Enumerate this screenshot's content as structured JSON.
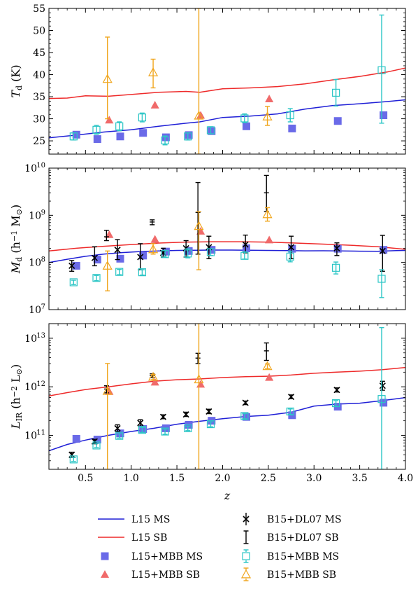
{
  "chart_data": [
    {
      "id": "td",
      "type": "scatter",
      "ylabel": "Td (K)",
      "ylabel_main": "T",
      "ylabel_sub": "d",
      "ylabel_unit": " (K)",
      "xlim": [
        0.1,
        4.0
      ],
      "ylim": [
        22,
        55
      ],
      "yscale": "linear",
      "yticks": [
        25,
        30,
        35,
        40,
        45,
        50,
        55
      ],
      "yticklabels": [
        "25",
        "30",
        "35",
        "40",
        "45",
        "50",
        "55"
      ],
      "series": [
        {
          "name": "L15 MS",
          "kind": "line",
          "x": [
            0.1,
            0.4,
            0.7,
            1.0,
            1.3,
            1.6,
            1.75,
            2.0,
            2.3,
            2.6,
            2.9,
            3.2,
            3.5,
            3.8,
            4.0
          ],
          "y": [
            25.7,
            26.3,
            27.0,
            27.5,
            28.3,
            29.0,
            29.3,
            30.3,
            30.6,
            31.1,
            32.2,
            33.0,
            33.4,
            33.9,
            34.3
          ]
        },
        {
          "name": "L15 SB",
          "kind": "line",
          "x": [
            0.1,
            0.3,
            0.5,
            0.75,
            1.0,
            1.3,
            1.6,
            1.75,
            2.0,
            2.3,
            2.6,
            2.9,
            3.2,
            3.5,
            3.8,
            4.0
          ],
          "y": [
            34.6,
            34.7,
            35.2,
            35.1,
            35.5,
            36.0,
            36.2,
            36.0,
            36.8,
            37.0,
            37.3,
            37.9,
            38.8,
            39.6,
            40.6,
            41.5
          ]
        },
        {
          "name": "L15+MBB MS",
          "kind": "points",
          "x": [
            0.4,
            0.63,
            0.88,
            1.13,
            1.38,
            1.63,
            1.88,
            2.26,
            2.76,
            3.26,
            3.76
          ],
          "y": [
            26.4,
            25.4,
            26.0,
            26.8,
            25.8,
            26.3,
            27.2,
            28.3,
            27.8,
            29.5,
            30.8
          ]
        },
        {
          "name": "L15+MBB SB",
          "kind": "points",
          "x": [
            0.76,
            1.26,
            1.76,
            2.51
          ],
          "y": [
            29.7,
            33.1,
            30.8,
            34.5
          ]
        },
        {
          "name": "B15+MBB MS",
          "kind": "errorbar",
          "x": [
            0.37,
            0.62,
            0.87,
            1.12,
            1.37,
            1.62,
            1.87,
            2.24,
            2.74,
            3.24,
            3.74
          ],
          "y": [
            26.0,
            27.5,
            28.3,
            30.3,
            25.1,
            26.0,
            27.4,
            30.1,
            30.8,
            35.9,
            41.0
          ],
          "yerr_low": [
            0.8,
            1.0,
            1.0,
            1.0,
            1.0,
            0.8,
            0.8,
            1.0,
            1.5,
            3.0,
            12.0
          ],
          "yerr_high": [
            0.8,
            1.0,
            1.0,
            1.0,
            1.0,
            0.8,
            0.8,
            1.0,
            1.5,
            3.0,
            12.5
          ]
        },
        {
          "name": "B15+MBB SB",
          "kind": "errorbar",
          "x": [
            0.74,
            1.24,
            1.74,
            2.49
          ],
          "y": [
            39.0,
            40.5,
            30.7,
            30.5
          ],
          "yerr_low": [
            9.0,
            3.5,
            22.0,
            2.0
          ],
          "yerr_high": [
            9.5,
            3.0,
            24.5,
            2.3
          ]
        }
      ]
    },
    {
      "id": "md",
      "type": "scatter",
      "ylabel": "Md (h−1 M⊙)",
      "ylabel_main": "M",
      "ylabel_sub": "d",
      "ylabel_unit": " (h",
      "ylabel_sup": "−1",
      "ylabel_tail": " M",
      "ylabel_sun": "⊙",
      "ylabel_close": ")",
      "xlim": [
        0.1,
        4.0
      ],
      "ylim": [
        10000000,
        10000000000
      ],
      "yscale": "log",
      "yticks": [
        10000000,
        100000000,
        1000000000,
        10000000000
      ],
      "yticklabels": [
        "10",
        "10",
        "10",
        "10"
      ],
      "ytickexp": [
        "7",
        "8",
        "9",
        "10"
      ],
      "series": [
        {
          "name": "L15 MS",
          "kind": "line",
          "x": [
            0.1,
            0.3,
            0.5,
            0.7,
            0.9,
            1.1,
            1.3,
            1.5,
            1.7,
            1.9,
            2.1,
            2.3,
            2.5,
            2.7,
            2.9,
            3.1,
            3.3,
            3.5,
            3.7,
            3.9,
            4.0
          ],
          "y": [
            100000000,
            117000000,
            135000000,
            150000000,
            162000000,
            170000000,
            175000000,
            180000000,
            182000000,
            183000000,
            183000000,
            181000000,
            180000000,
            178000000,
            176000000,
            177000000,
            175000000,
            173000000,
            172000000,
            178000000,
            180000000
          ]
        },
        {
          "name": "L15 SB",
          "kind": "line",
          "x": [
            0.1,
            0.4,
            0.7,
            1.0,
            1.3,
            1.6,
            1.9,
            2.2,
            2.5,
            2.8,
            3.1,
            3.4,
            3.7,
            4.0
          ],
          "y": [
            175000000,
            200000000,
            220000000,
            240000000,
            258000000,
            270000000,
            275000000,
            275000000,
            270000000,
            258000000,
            245000000,
            232000000,
            215000000,
            190000000
          ]
        },
        {
          "name": "L15+MBB MS",
          "kind": "points",
          "x": [
            0.4,
            0.63,
            0.88,
            1.13,
            1.38,
            1.63,
            1.88,
            2.26,
            2.76,
            3.26,
            3.76
          ],
          "y": [
            85000000,
            115000000,
            120000000,
            140000000,
            170000000,
            175000000,
            185000000,
            200000000,
            195000000,
            195000000,
            185000000
          ]
        },
        {
          "name": "L15+MBB SB",
          "kind": "points",
          "x": [
            0.76,
            1.26,
            1.76,
            2.51
          ],
          "y": [
            390000000,
            310000000,
            460000000,
            300000000
          ]
        },
        {
          "name": "B15+DL07 MS",
          "kind": "errorbar",
          "x": [
            0.35,
            0.6,
            0.85,
            1.1,
            1.35,
            1.6,
            1.85,
            2.25,
            2.75,
            3.25,
            3.75
          ],
          "y": [
            85000000,
            125000000,
            185000000,
            130000000,
            160000000,
            200000000,
            210000000,
            240000000,
            210000000,
            200000000,
            175000000
          ],
          "yerr_low": [
            20000000,
            40000000,
            70000000,
            60000000,
            30000000,
            70000000,
            90000000,
            80000000,
            90000000,
            60000000,
            110000000
          ],
          "yerr_high": [
            25000000,
            90000000,
            120000000,
            120000000,
            40000000,
            90000000,
            150000000,
            140000000,
            150000000,
            60000000,
            200000000
          ]
        },
        {
          "name": "B15+DL07 SB",
          "kind": "errorbar",
          "x": [
            0.73,
            1.23,
            1.73,
            2.48
          ],
          "y": [
            350000000,
            720000000,
            1150000000,
            3000000000
          ],
          "yerr_low": [
            60000000,
            90000000,
            1000000000,
            1800000000
          ],
          "yerr_high": [
            130000000,
            80000000,
            3800000000,
            4000000000
          ]
        },
        {
          "name": "B15+MBB MS",
          "kind": "errorbar",
          "x": [
            0.37,
            0.62,
            0.87,
            1.12,
            1.37,
            1.62,
            1.87,
            2.24,
            2.74,
            3.24,
            3.74
          ],
          "y": [
            38000000,
            47000000,
            63000000,
            62000000,
            150000000,
            155000000,
            165000000,
            138000000,
            133000000,
            77000000,
            45000000
          ],
          "yerr_low": [
            4000000,
            6000000,
            8000000,
            8000000,
            20000000,
            30000000,
            25000000,
            20000000,
            30000000,
            20000000,
            27000000
          ],
          "yerr_high": [
            4000000,
            6000000,
            8000000,
            8000000,
            30000000,
            40000000,
            30000000,
            30000000,
            40000000,
            25000000,
            25000000
          ]
        },
        {
          "name": "B15+MBB SB",
          "kind": "errorbar",
          "x": [
            0.74,
            1.24,
            1.74,
            2.49
          ],
          "y": [
            85000000,
            190000000,
            590000000,
            1050000000
          ],
          "yerr_low": [
            60000000,
            40000000,
            520000000,
            300000000
          ],
          "yerr_high": [
            90000000,
            60000000,
            600000000,
            400000000
          ]
        }
      ]
    },
    {
      "id": "lir",
      "type": "scatter",
      "ylabel": "LIR (h−2 L⊙)",
      "ylabel_main": "L",
      "ylabel_sub": "IR",
      "ylabel_unit": " (h",
      "ylabel_sup": "−2",
      "ylabel_tail": " L",
      "ylabel_sun": "⊙",
      "ylabel_close": ")",
      "xlabel": "z",
      "xlim": [
        0.1,
        4.0
      ],
      "ylim": [
        20000000000,
        20000000000000
      ],
      "yscale": "log",
      "yticks": [
        100000000000,
        1000000000000,
        10000000000000
      ],
      "yticklabels": [
        "10",
        "10",
        "10"
      ],
      "ytickexp": [
        "11",
        "12",
        "13"
      ],
      "xticks": [
        0.5,
        1.0,
        1.5,
        2.0,
        2.5,
        3.0,
        3.5,
        4.0
      ],
      "xticklabels": [
        "0.5",
        "1.0",
        "1.5",
        "2.0",
        "2.5",
        "3.0",
        "3.5",
        "4.0"
      ],
      "series": [
        {
          "name": "L15 MS",
          "kind": "line",
          "x": [
            0.1,
            0.3,
            0.5,
            0.75,
            1.0,
            1.25,
            1.5,
            1.75,
            2.0,
            2.25,
            2.5,
            2.75,
            3.0,
            3.25,
            3.5,
            3.75,
            4.0
          ],
          "y": [
            48000000000,
            65000000000,
            80000000000,
            100000000000,
            120000000000,
            140000000000,
            170000000000,
            195000000000,
            220000000000,
            245000000000,
            260000000000,
            300000000000,
            400000000000,
            440000000000,
            460000000000,
            520000000000,
            600000000000
          ]
        },
        {
          "name": "L15 SB",
          "kind": "line",
          "x": [
            0.1,
            0.3,
            0.5,
            0.75,
            1.0,
            1.25,
            1.5,
            1.75,
            2.0,
            2.25,
            2.5,
            2.75,
            3.0,
            3.25,
            3.5,
            3.75,
            4.0
          ],
          "y": [
            650000000000,
            760000000000,
            880000000000,
            1000000000000,
            1150000000000,
            1300000000000,
            1400000000000,
            1450000000000,
            1550000000000,
            1620000000000,
            1650000000000,
            1750000000000,
            1900000000000,
            2000000000000,
            2100000000000,
            2250000000000,
            2500000000000
          ]
        },
        {
          "name": "L15+MBB MS",
          "kind": "points",
          "x": [
            0.4,
            0.63,
            0.88,
            1.13,
            1.38,
            1.63,
            1.88,
            2.26,
            2.76,
            3.26,
            3.76
          ],
          "y": [
            85000000000,
            82000000000,
            110000000000,
            135000000000,
            140000000000,
            165000000000,
            200000000000,
            240000000000,
            260000000000,
            390000000000,
            470000000000
          ]
        },
        {
          "name": "L15+MBB SB",
          "kind": "points",
          "x": [
            0.76,
            1.26,
            1.76,
            2.51
          ],
          "y": [
            800000000000,
            1250000000000,
            1130000000000,
            1560000000000
          ]
        },
        {
          "name": "B15+DL07 MS",
          "kind": "errorbar",
          "x": [
            0.35,
            0.6,
            0.85,
            1.1,
            1.35,
            1.6,
            1.85,
            2.25,
            2.75,
            3.25,
            3.75
          ],
          "y": [
            40000000000,
            75000000000,
            140000000000,
            180000000000,
            240000000000,
            270000000000,
            310000000000,
            470000000000,
            620000000000,
            860000000000,
            1050000000000
          ],
          "yerr_low": [
            5000000000,
            8000000000,
            20000000000,
            25000000000,
            20000000000,
            25000000000,
            30000000000,
            40000000000,
            50000000000,
            80000000000,
            200000000000
          ],
          "yerr_high": [
            5000000000,
            8000000000,
            25000000000,
            30000000000,
            25000000000,
            30000000000,
            35000000000,
            40000000000,
            60000000000,
            90000000000,
            250000000000
          ]
        },
        {
          "name": "B15+DL07 SB",
          "kind": "errorbar",
          "x": [
            0.73,
            1.23,
            1.73,
            2.48
          ],
          "y": [
            900000000000,
            1700000000000,
            3900000000000,
            5500000000000
          ],
          "yerr_low": [
            150000000000,
            150000000000,
            900000000000,
            2000000000000
          ],
          "yerr_high": [
            150000000000,
            150000000000,
            1000000000000,
            2500000000000
          ]
        },
        {
          "name": "B15+MBB MS",
          "kind": "errorbar",
          "x": [
            0.37,
            0.62,
            0.87,
            1.12,
            1.37,
            1.62,
            1.87,
            2.24,
            2.74,
            3.24,
            3.74
          ],
          "y": [
            32000000000,
            62000000000,
            98000000000,
            130000000000,
            120000000000,
            140000000000,
            170000000000,
            250000000000,
            310000000000,
            460000000000,
            560000000000
          ],
          "yerr_low": [
            3000000000,
            6000000000,
            10000000000,
            15000000000,
            15000000000,
            15000000000,
            20000000000,
            30000000000,
            40000000000,
            60000000000,
            540000000000
          ],
          "yerr_high": [
            3000000000,
            6000000000,
            10000000000,
            15000000000,
            15000000000,
            15000000000,
            20000000000,
            30000000000,
            40000000000,
            60000000000,
            16000000000000
          ]
        },
        {
          "name": "B15+MBB SB",
          "kind": "errorbar",
          "x": [
            0.74,
            1.24,
            1.74,
            2.49
          ],
          "y": [
            820000000000,
            1600000000000,
            1420000000000,
            2650000000000
          ],
          "yerr_low": [
            800000000000,
            200000000000,
            1400000000000,
            300000000000
          ],
          "yerr_high": [
            2200000000000,
            200000000000,
            20000000000000,
            300000000000
          ]
        }
      ]
    }
  ],
  "styles": {
    "L15 MS": {
      "color": "#1f1fd6",
      "marker": "line"
    },
    "L15 SB": {
      "color": "#ee2a2a",
      "marker": "line"
    },
    "L15+MBB MS": {
      "color": "#6a6ae8",
      "marker": "square-filled"
    },
    "L15+MBB SB": {
      "color": "#f06a6a",
      "marker": "triangle-filled"
    },
    "B15+DL07 MS": {
      "color": "#000000",
      "marker": "x"
    },
    "B15+DL07 SB": {
      "color": "#000000",
      "marker": "bar"
    },
    "B15+MBB MS": {
      "color": "#2cc6c6",
      "marker": "square-open"
    },
    "B15+MBB SB": {
      "color": "#f0a61e",
      "marker": "triangle-open"
    }
  },
  "legend": {
    "placement": "bottom",
    "left": [
      "L15 MS",
      "L15 SB",
      "L15+MBB MS",
      "L15+MBB SB"
    ],
    "right": [
      "B15+DL07 MS",
      "B15+DL07 SB",
      "B15+MBB MS",
      "B15+MBB SB"
    ]
  }
}
